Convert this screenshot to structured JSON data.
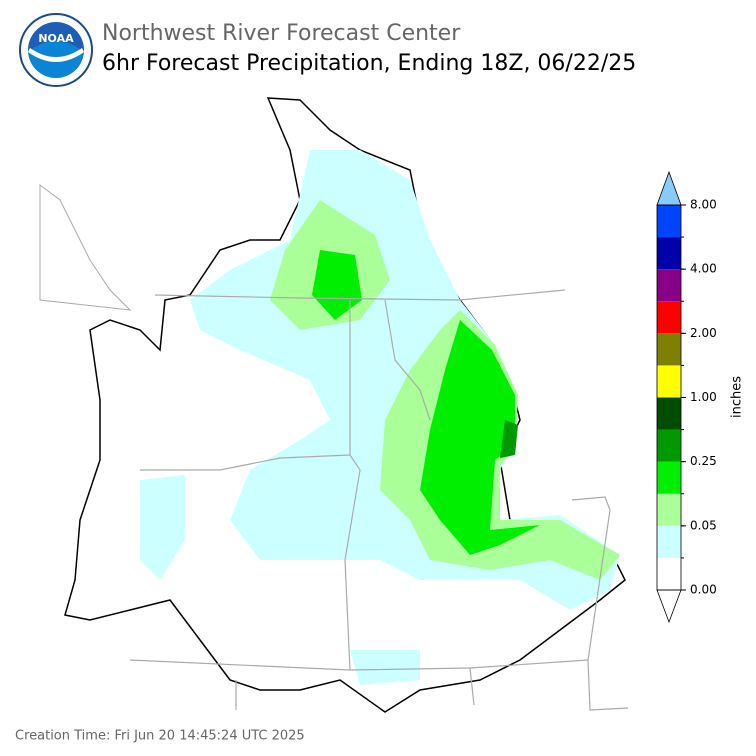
{
  "header": {
    "agency": "Northwest River Forecast Center",
    "product": "6hr Forecast Precipitation, Ending 18Z, 06/22/25",
    "logo_text": "NOAA"
  },
  "colorbar": {
    "label": "inches",
    "colors": [
      "#ffffff",
      "#ccffff",
      "#aaff99",
      "#00ee00",
      "#009900",
      "#004d00",
      "#ffff00",
      "#808000",
      "#ff0000",
      "#880088",
      "#0000aa",
      "#0044ff"
    ],
    "extend_colors": [
      "#ffffff",
      "#88ccff"
    ],
    "ticks": [
      {
        "value": 0,
        "label": "0.00"
      },
      {
        "value": 0.05,
        "label": "0.05"
      },
      {
        "value": 0.25,
        "label": "0.25"
      },
      {
        "value": 1,
        "label": "1.00"
      },
      {
        "value": 2,
        "label": "2.00"
      },
      {
        "value": 4,
        "label": "4.00"
      },
      {
        "value": 8,
        "label": "8.00"
      }
    ]
  },
  "footer": {
    "creation_time": "Creation Time: Fri Jun 20 14:45:24 UTC 2025"
  }
}
